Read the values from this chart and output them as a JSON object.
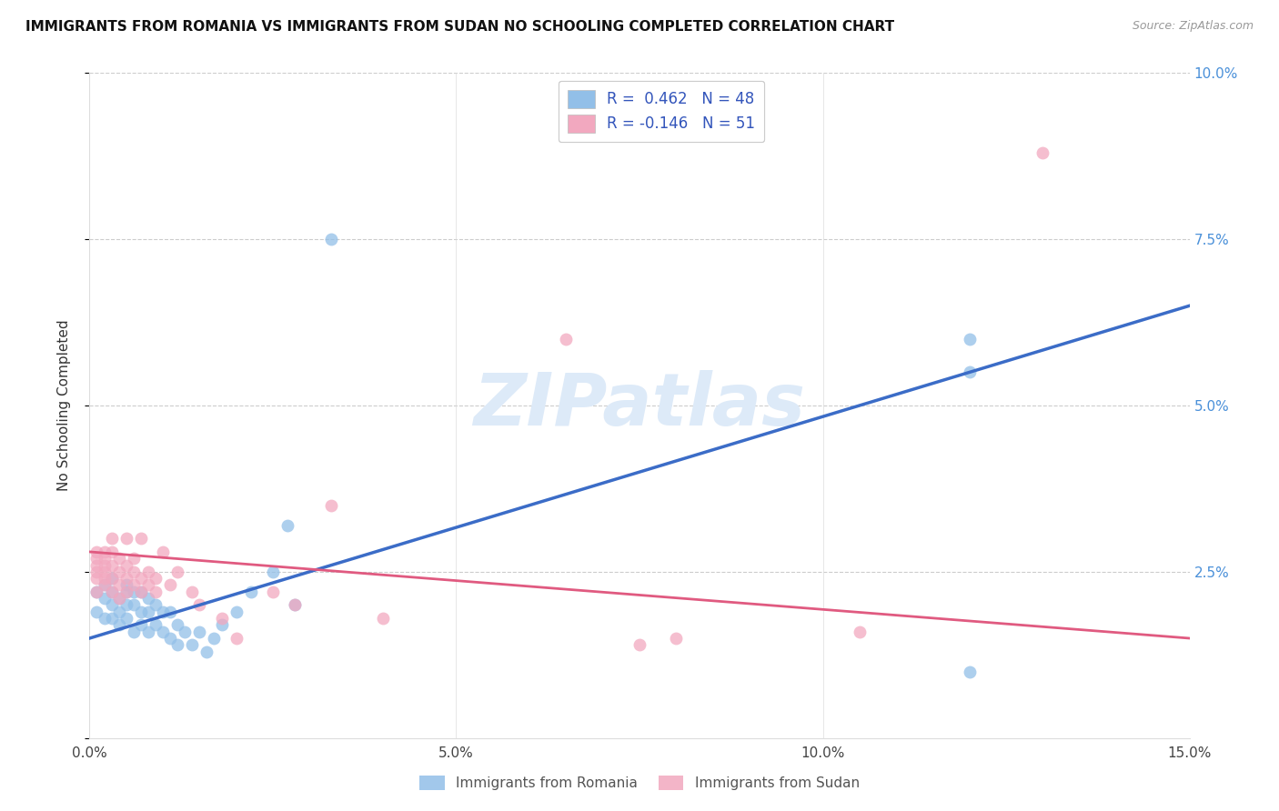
{
  "title": "IMMIGRANTS FROM ROMANIA VS IMMIGRANTS FROM SUDAN NO SCHOOLING COMPLETED CORRELATION CHART",
  "source": "Source: ZipAtlas.com",
  "ylabel": "No Schooling Completed",
  "xlim": [
    0.0,
    0.15
  ],
  "ylim": [
    0.0,
    0.1
  ],
  "xticks": [
    0.0,
    0.05,
    0.1,
    0.15
  ],
  "xtick_labels": [
    "0.0%",
    "5.0%",
    "10.0%",
    "15.0%"
  ],
  "yticks_right": [
    0.0,
    0.025,
    0.05,
    0.075,
    0.1
  ],
  "ytick_labels_right": [
    "",
    "2.5%",
    "5.0%",
    "7.5%",
    "10.0%"
  ],
  "romania_color": "#92BFE8",
  "sudan_color": "#F2A8BF",
  "romania_line_color": "#3B6CC7",
  "sudan_line_color": "#E05A80",
  "romania_line_x0": 0.0,
  "romania_line_y0": 0.015,
  "romania_line_x1": 0.15,
  "romania_line_y1": 0.065,
  "sudan_line_x0": 0.0,
  "sudan_line_y0": 0.028,
  "sudan_line_x1": 0.15,
  "sudan_line_y1": 0.015,
  "watermark": "ZIPatlas",
  "legend_label_romania": "R =  0.462   N = 48",
  "legend_label_sudan": "R = -0.146   N = 51",
  "bottom_label_romania": "Immigrants from Romania",
  "bottom_label_sudan": "Immigrants from Sudan",
  "romania_scatter_x": [
    0.001,
    0.001,
    0.002,
    0.002,
    0.002,
    0.003,
    0.003,
    0.003,
    0.003,
    0.004,
    0.004,
    0.004,
    0.005,
    0.005,
    0.005,
    0.005,
    0.006,
    0.006,
    0.006,
    0.007,
    0.007,
    0.007,
    0.008,
    0.008,
    0.008,
    0.009,
    0.009,
    0.01,
    0.01,
    0.011,
    0.011,
    0.012,
    0.012,
    0.013,
    0.014,
    0.015,
    0.016,
    0.017,
    0.018,
    0.02,
    0.022,
    0.025,
    0.027,
    0.028,
    0.033,
    0.12,
    0.12,
    0.12
  ],
  "romania_scatter_y": [
    0.022,
    0.019,
    0.021,
    0.018,
    0.023,
    0.02,
    0.022,
    0.018,
    0.024,
    0.017,
    0.021,
    0.019,
    0.022,
    0.018,
    0.02,
    0.023,
    0.016,
    0.02,
    0.022,
    0.017,
    0.019,
    0.022,
    0.016,
    0.019,
    0.021,
    0.017,
    0.02,
    0.016,
    0.019,
    0.015,
    0.019,
    0.014,
    0.017,
    0.016,
    0.014,
    0.016,
    0.013,
    0.015,
    0.017,
    0.019,
    0.022,
    0.025,
    0.032,
    0.02,
    0.075,
    0.055,
    0.06,
    0.01
  ],
  "sudan_scatter_x": [
    0.001,
    0.001,
    0.001,
    0.001,
    0.001,
    0.001,
    0.002,
    0.002,
    0.002,
    0.002,
    0.002,
    0.002,
    0.003,
    0.003,
    0.003,
    0.003,
    0.003,
    0.004,
    0.004,
    0.004,
    0.004,
    0.005,
    0.005,
    0.005,
    0.005,
    0.006,
    0.006,
    0.006,
    0.007,
    0.007,
    0.007,
    0.008,
    0.008,
    0.009,
    0.009,
    0.01,
    0.011,
    0.012,
    0.014,
    0.015,
    0.018,
    0.02,
    0.025,
    0.028,
    0.033,
    0.04,
    0.065,
    0.075,
    0.08,
    0.105,
    0.13
  ],
  "sudan_scatter_y": [
    0.026,
    0.024,
    0.027,
    0.025,
    0.028,
    0.022,
    0.025,
    0.023,
    0.026,
    0.024,
    0.028,
    0.027,
    0.022,
    0.024,
    0.026,
    0.028,
    0.03,
    0.021,
    0.023,
    0.025,
    0.027,
    0.022,
    0.024,
    0.026,
    0.03,
    0.023,
    0.025,
    0.027,
    0.022,
    0.024,
    0.03,
    0.023,
    0.025,
    0.022,
    0.024,
    0.028,
    0.023,
    0.025,
    0.022,
    0.02,
    0.018,
    0.015,
    0.022,
    0.02,
    0.035,
    0.018,
    0.06,
    0.014,
    0.015,
    0.016,
    0.088
  ]
}
